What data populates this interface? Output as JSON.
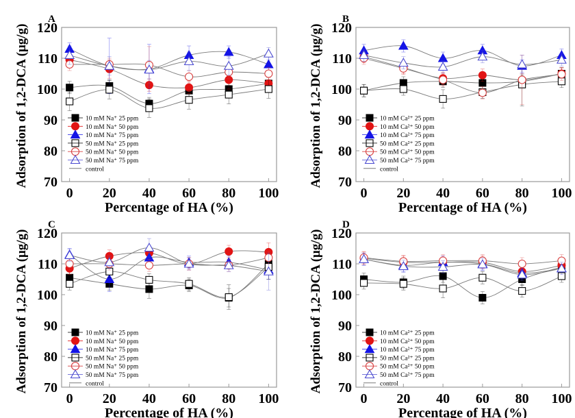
{
  "colors": {
    "black": "#000000",
    "red": "#e11414",
    "blue": "#1414e6",
    "gray": "#7a7a7a",
    "open_red": "#d84040",
    "open_blue": "#4a4ad0",
    "frame": "#9a9a9a"
  },
  "chart_data": [
    {
      "panel": "A",
      "type": "scatter",
      "xlabel": "Percentage of HA (%)",
      "ylabel": "Adsorption of 1,2-DCA (μg/g)",
      "xlim": [
        -4,
        104
      ],
      "ylim": [
        70,
        120
      ],
      "x_ticks": [
        0,
        20,
        40,
        60,
        80,
        100
      ],
      "y_ticks": [
        70,
        80,
        90,
        100,
        110,
        120
      ],
      "legend_position": "bottom-left",
      "x": [
        0,
        20,
        40,
        60,
        80,
        100
      ],
      "series": [
        {
          "name": "10 mM Na⁺ 25 ppm",
          "marker": "square",
          "fill": true,
          "color": "#000000",
          "values": [
            100.5,
            101,
            95.3,
            99.5,
            100,
            101.8
          ],
          "err": [
            2,
            2,
            2,
            2,
            2,
            2
          ]
        },
        {
          "name": "10 mM Na⁺ 50 ppm",
          "marker": "circle",
          "fill": true,
          "color": "#e11414",
          "values": [
            109.5,
            106.5,
            101.3,
            100.5,
            103,
            101.8
          ],
          "err": [
            2,
            3,
            2,
            2,
            3,
            2
          ]
        },
        {
          "name": "10 mM Na⁺ 75 ppm",
          "marker": "triangle",
          "fill": true,
          "color": "#1414e6",
          "values": [
            113,
            107.5,
            106.5,
            111,
            112,
            108
          ],
          "err": [
            2,
            9,
            8,
            3,
            2,
            3
          ]
        },
        {
          "name": "50 mM Na⁺ 25 ppm",
          "marker": "square",
          "fill": false,
          "color": "#000000",
          "values": [
            96,
            99.8,
            93.8,
            96.5,
            98.2,
            100
          ],
          "err": [
            3,
            3,
            3,
            3,
            3,
            3
          ]
        },
        {
          "name": "50 mM Na⁺ 50 ppm",
          "marker": "circle",
          "fill": false,
          "color": "#d84040",
          "values": [
            108,
            108,
            107.8,
            104,
            105.5,
            105
          ],
          "err": [
            2,
            2,
            6,
            2,
            2,
            2
          ]
        },
        {
          "name": "50 mM Na⁺ 75 ppm",
          "marker": "triangle",
          "fill": false,
          "color": "#4a4ad0",
          "values": [
            111,
            107.5,
            106.3,
            109,
            107.5,
            111.5
          ],
          "err": [
            3,
            3,
            3,
            3,
            3,
            2
          ]
        },
        {
          "name": "control",
          "marker": "line",
          "fill": false,
          "color": "#7a7a7a",
          "values": []
        }
      ]
    },
    {
      "panel": "B",
      "type": "scatter",
      "xlabel": "Percentage of HA (%)",
      "ylabel": "Adsorption of 1,2-DCA (μg/g)",
      "xlim": [
        -4,
        104
      ],
      "ylim": [
        70,
        120
      ],
      "x_ticks": [
        0,
        20,
        40,
        60,
        80,
        100
      ],
      "y_ticks": [
        70,
        80,
        90,
        100,
        110,
        120
      ],
      "legend_position": "bottom-left",
      "x": [
        0,
        20,
        40,
        60,
        80,
        100
      ],
      "series": [
        {
          "name": "10 mM Ca²⁺ 25 ppm",
          "marker": "square",
          "fill": true,
          "color": "#000000",
          "values": [
            99.5,
            102,
            102.5,
            102,
            102.5,
            105
          ],
          "err": [
            2,
            2,
            2,
            2,
            2,
            2
          ]
        },
        {
          "name": "10 mM Ca²⁺ 50 ppm",
          "marker": "circle",
          "fill": true,
          "color": "#e11414",
          "values": [
            110.5,
            107,
            103.5,
            104.5,
            103,
            105
          ],
          "err": [
            2,
            2,
            2,
            2,
            2,
            2
          ]
        },
        {
          "name": "10 mM Ca²⁺ 75 ppm",
          "marker": "triangle",
          "fill": true,
          "color": "#1414e6",
          "values": [
            112.5,
            114,
            110,
            112.5,
            107.5,
            111
          ],
          "err": [
            2,
            2,
            2,
            2,
            2,
            2
          ]
        },
        {
          "name": "50 mM Ca²⁺ 25 ppm",
          "marker": "square",
          "fill": false,
          "color": "#000000",
          "values": [
            99.5,
            100,
            96.8,
            99,
            101.5,
            102.5
          ],
          "err": [
            2,
            2,
            3,
            2,
            7,
            2
          ]
        },
        {
          "name": "50 mM Ca²⁺ 50 ppm",
          "marker": "circle",
          "fill": false,
          "color": "#d84040",
          "values": [
            110,
            106.7,
            103,
            98.8,
            103,
            104.8
          ],
          "err": [
            2,
            2,
            2,
            2,
            8,
            2
          ]
        },
        {
          "name": "50 mM Ca²⁺ 75 ppm",
          "marker": "triangle",
          "fill": false,
          "color": "#4a4ad0",
          "values": [
            111,
            108.5,
            107.2,
            110.5,
            108,
            109.5
          ],
          "err": [
            2,
            2,
            2,
            2,
            3,
            2
          ]
        },
        {
          "name": "control",
          "marker": "line",
          "fill": false,
          "color": "#7a7a7a",
          "values": []
        }
      ]
    },
    {
      "panel": "C",
      "type": "scatter",
      "xlabel": "Percentage of HA (%)",
      "ylabel": "Adsorption of 1,2-DCA (μg/g)",
      "xlim": [
        -4,
        104
      ],
      "ylim": [
        70,
        120
      ],
      "x_ticks": [
        0,
        20,
        40,
        60,
        80,
        100
      ],
      "y_ticks": [
        70,
        80,
        90,
        100,
        110,
        120
      ],
      "legend_position": "bottom-left",
      "x": [
        0,
        20,
        40,
        60,
        80,
        100
      ],
      "series": [
        {
          "name": "10 mM Na⁺ 25 ppm",
          "marker": "square",
          "fill": true,
          "color": "#000000",
          "values": [
            105.5,
            103.5,
            101.8,
            103,
            99,
            110
          ],
          "err": [
            2,
            2,
            3,
            2,
            3,
            3
          ]
        },
        {
          "name": "10 mM Na⁺ 50 ppm",
          "marker": "circle",
          "fill": true,
          "color": "#e11414",
          "values": [
            108.5,
            112.5,
            113.5,
            110,
            114,
            113.8
          ],
          "err": [
            2,
            2,
            2,
            2,
            2,
            3
          ]
        },
        {
          "name": "10 mM Na⁺ 75 ppm",
          "marker": "triangle",
          "fill": true,
          "color": "#1414e6",
          "values": [
            113,
            105,
            112,
            110.5,
            110.5,
            108
          ],
          "err": [
            2,
            4,
            3,
            2,
            2,
            3
          ]
        },
        {
          "name": "50 mM Na⁺ 25 ppm",
          "marker": "square",
          "fill": false,
          "color": "#000000",
          "values": [
            103.5,
            107.5,
            104.8,
            103.5,
            99.2,
            109
          ],
          "err": [
            2,
            2,
            2,
            2,
            4,
            4
          ]
        },
        {
          "name": "50 mM Na⁺ 50 ppm",
          "marker": "circle",
          "fill": false,
          "color": "#d84040",
          "values": [
            110,
            110,
            109.5,
            110,
            109.5,
            112
          ],
          "err": [
            2,
            2,
            2,
            2,
            2,
            2
          ]
        },
        {
          "name": "50 mM Na⁺ 75 ppm",
          "marker": "triangle",
          "fill": false,
          "color": "#4a4ad0",
          "values": [
            112.8,
            110.5,
            115.2,
            110,
            109.5,
            107.5
          ],
          "err": [
            2,
            2,
            3,
            2,
            2,
            6
          ]
        },
        {
          "name": "control",
          "marker": "line",
          "fill": false,
          "color": "#7a7a7a",
          "values": []
        }
      ]
    },
    {
      "panel": "D",
      "type": "scatter",
      "xlabel": "Percentage of HA (%)",
      "ylabel": "Adsorption of 1,2-DCA (μg/g)",
      "xlim": [
        -4,
        104
      ],
      "ylim": [
        70,
        120
      ],
      "x_ticks": [
        0,
        20,
        40,
        60,
        80,
        100
      ],
      "y_ticks": [
        70,
        80,
        90,
        100,
        110,
        120
      ],
      "legend_position": "bottom-left",
      "x": [
        0,
        20,
        40,
        60,
        80,
        100
      ],
      "series": [
        {
          "name": "10 mM Ca²⁺ 25 ppm",
          "marker": "square",
          "fill": true,
          "color": "#000000",
          "values": [
            105,
            104,
            106,
            99,
            105,
            109
          ],
          "err": [
            2,
            2,
            2,
            2,
            2,
            2
          ]
        },
        {
          "name": "10 mM Ca²⁺ 50 ppm",
          "marker": "circle",
          "fill": true,
          "color": "#e11414",
          "values": [
            111.8,
            110.5,
            110.5,
            110.5,
            107.5,
            109.5
          ],
          "err": [
            2,
            2,
            2,
            2,
            2,
            2
          ]
        },
        {
          "name": "10 mM Ca²⁺ 75 ppm",
          "marker": "triangle",
          "fill": true,
          "color": "#1414e6",
          "values": [
            111.5,
            109.5,
            110.5,
            110,
            107,
            108.5
          ],
          "err": [
            2,
            2,
            2,
            2,
            2,
            2
          ]
        },
        {
          "name": "50 mM Ca²⁺ 25 ppm",
          "marker": "square",
          "fill": false,
          "color": "#000000",
          "values": [
            103.8,
            103.5,
            102,
            105.5,
            101.2,
            106
          ],
          "err": [
            2,
            2,
            3,
            2,
            2,
            2
          ]
        },
        {
          "name": "50 mM Ca²⁺ 50 ppm",
          "marker": "circle",
          "fill": false,
          "color": "#d84040",
          "values": [
            112,
            110.8,
            111,
            111,
            110,
            111
          ],
          "err": [
            2,
            2,
            2,
            2,
            2,
            2
          ]
        },
        {
          "name": "50 mM Ca²⁺ 75 ppm",
          "marker": "triangle",
          "fill": false,
          "color": "#4a4ad0",
          "values": [
            111.5,
            109.2,
            109,
            109.8,
            106.5,
            108.5
          ],
          "err": [
            2,
            2,
            2,
            2,
            2,
            2
          ]
        },
        {
          "name": "control",
          "marker": "line",
          "fill": false,
          "color": "#7a7a7a",
          "values": []
        }
      ]
    }
  ]
}
